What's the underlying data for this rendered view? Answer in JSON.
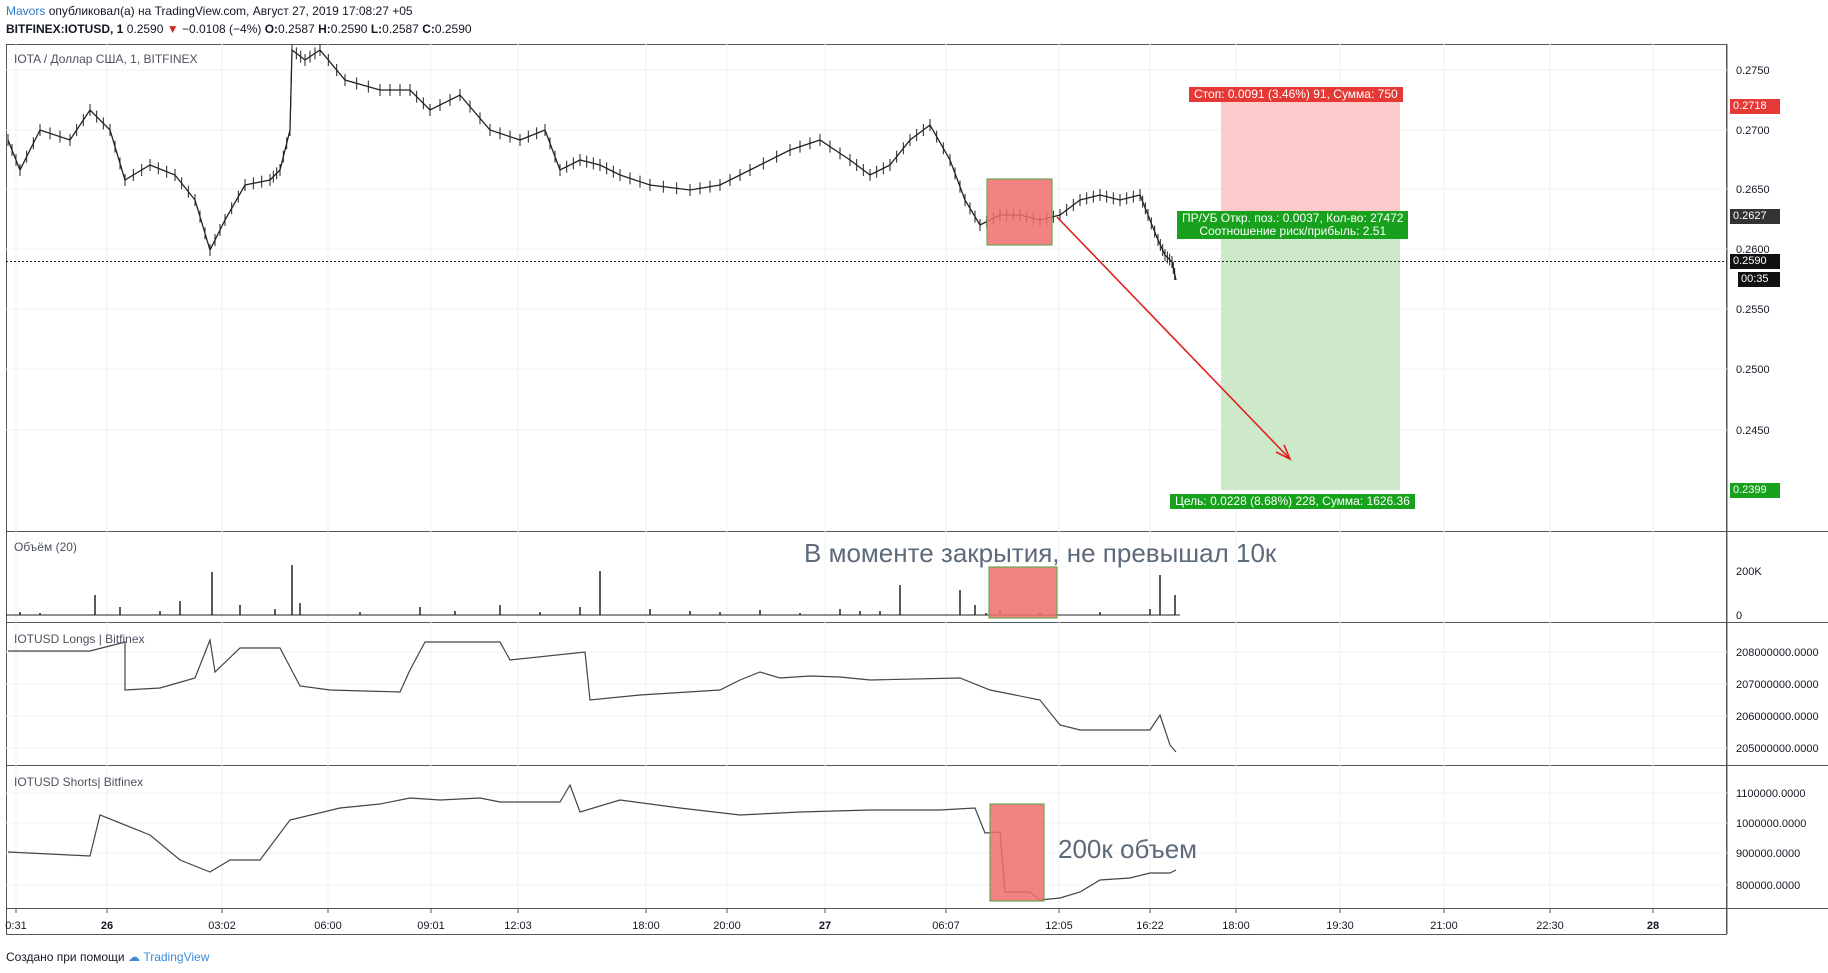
{
  "header": {
    "author": "Mavors",
    "published_text": "опубликовал(а) на TradingView.com, Август 27, 2019 17:08:27 +05",
    "symbol": "BITFINEX:IOTUSD, 1",
    "last": "0.2590",
    "change": "−0.0108 (−4%)",
    "o_label": "O:",
    "o": "0.2587",
    "h_label": "H:",
    "h": "0.2590",
    "l_label": "L:",
    "l": "0.2587",
    "c_label": "C:",
    "c": "0.2590"
  },
  "panes": {
    "price_title": "IOTA / Доллар США, 1, BITFINEX",
    "volume_title": "Объём (20)",
    "longs_title": "IOTUSD Longs | Bitfinex",
    "shorts_title": "IOTUSD Shorts| Bitfinex"
  },
  "price_axis": [
    "0.2750",
    "0.2700",
    "0.2650",
    "0.2600",
    "0.2550",
    "0.2500",
    "0.2450"
  ],
  "volume_axis": [
    "200K",
    "0"
  ],
  "longs_axis": [
    "208000000.0000",
    "207000000.0000",
    "206000000.0000",
    "205000000.0000"
  ],
  "shorts_axis": [
    "1100000.0000",
    "1000000.0000",
    "900000.0000",
    "800000.0000"
  ],
  "time_axis": [
    "0:31",
    "26",
    "03:02",
    "06:00",
    "09:01",
    "12:03",
    "18:00",
    "20:00",
    "27",
    "06:07",
    "12:05",
    "16:22",
    "18:00",
    "19:30",
    "21:00",
    "22:30",
    "28"
  ],
  "price_tags": {
    "stop": "0.2718",
    "entry": "0.2627",
    "current": "0.2590",
    "countdown": "00:35",
    "target": "0.2399"
  },
  "position_tool": {
    "stop_label": "Стоп: 0.0091 (3.46%) 91, Сумма: 750",
    "pl_label_1": "ПР/УБ Откр. поз.: 0.0037, Кол-во: 27472",
    "pl_label_2": "Соотношение риск/прибыль: 2.51",
    "target_label": "Цель: 0.0228 (8.68%) 228, Сумма: 1626.36"
  },
  "annotations": {
    "volume_note": "В моменте закрытия, не превышал 10к",
    "shorts_note": "200к объем"
  },
  "footer": {
    "created_with": "Создано при помощи",
    "brand": "TradingView"
  },
  "colors": {
    "stop_red": "#e53935",
    "target_green": "#18a11d",
    "stop_zone": "#fbcaca",
    "target_zone": "#cde9c9",
    "highlight_box": "#f06d6d",
    "arrow": "#e02020"
  }
}
